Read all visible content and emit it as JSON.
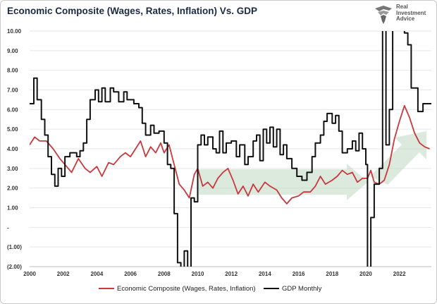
{
  "chart_data": {
    "type": "line",
    "title": "Economic Composite (Wages, Rates, Inflation) Vs. GDP",
    "xlabel": "",
    "ylabel": "",
    "xlim": [
      2000,
      2023.9
    ],
    "ylim": [
      -2,
      10
    ],
    "x_ticks": [
      "2000",
      "2002",
      "2004",
      "2006",
      "2008",
      "2010",
      "2012",
      "2014",
      "2016",
      "2018",
      "2020",
      "2022"
    ],
    "y_ticks": [
      "10.00",
      "9.00",
      "8.00",
      "7.00",
      "6.00",
      "5.00",
      "4.00",
      "3.00",
      "2.00",
      "1.00",
      "-",
      "(1.00)",
      "(2.00)"
    ],
    "grid": true,
    "legend": "bottom",
    "series": [
      {
        "name": "Economic Composite (Wages, Rates, Inflation)",
        "color": "#c8383c",
        "points": [
          [
            2000.0,
            4.2
          ],
          [
            2000.3,
            4.6
          ],
          [
            2000.6,
            4.4
          ],
          [
            2001.0,
            4.4
          ],
          [
            2001.4,
            4.0
          ],
          [
            2001.8,
            3.5
          ],
          [
            2002.2,
            3.1
          ],
          [
            2002.5,
            2.8
          ],
          [
            2002.9,
            3.5
          ],
          [
            2003.3,
            3.0
          ],
          [
            2003.6,
            2.8
          ],
          [
            2004.0,
            3.1
          ],
          [
            2004.3,
            2.6
          ],
          [
            2004.7,
            3.3
          ],
          [
            2005.0,
            3.2
          ],
          [
            2005.4,
            3.6
          ],
          [
            2005.7,
            3.8
          ],
          [
            2006.0,
            3.6
          ],
          [
            2006.3,
            4.0
          ],
          [
            2006.6,
            4.4
          ],
          [
            2006.9,
            3.6
          ],
          [
            2007.2,
            4.1
          ],
          [
            2007.5,
            3.8
          ],
          [
            2007.8,
            4.3
          ],
          [
            2008.0,
            3.8
          ],
          [
            2008.3,
            4.2
          ],
          [
            2008.6,
            3.2
          ],
          [
            2008.9,
            2.2
          ],
          [
            2009.2,
            1.9
          ],
          [
            2009.5,
            1.5
          ],
          [
            2009.8,
            2.7
          ],
          [
            2010.0,
            3.0
          ],
          [
            2010.3,
            2.1
          ],
          [
            2010.6,
            2.3
          ],
          [
            2010.9,
            2.0
          ],
          [
            2011.2,
            2.5
          ],
          [
            2011.5,
            2.8
          ],
          [
            2011.8,
            3.0
          ],
          [
            2012.1,
            2.4
          ],
          [
            2012.4,
            1.7
          ],
          [
            2012.7,
            2.1
          ],
          [
            2013.0,
            1.6
          ],
          [
            2013.3,
            2.2
          ],
          [
            2013.6,
            1.8
          ],
          [
            2014.0,
            2.3
          ],
          [
            2014.3,
            2.1
          ],
          [
            2014.7,
            1.9
          ],
          [
            2015.0,
            1.5
          ],
          [
            2015.3,
            1.2
          ],
          [
            2015.6,
            1.5
          ],
          [
            2016.0,
            1.6
          ],
          [
            2016.3,
            1.8
          ],
          [
            2016.7,
            1.8
          ],
          [
            2017.0,
            2.1
          ],
          [
            2017.3,
            2.6
          ],
          [
            2017.6,
            2.2
          ],
          [
            2018.0,
            2.4
          ],
          [
            2018.3,
            2.6
          ],
          [
            2018.6,
            2.9
          ],
          [
            2018.9,
            2.7
          ],
          [
            2019.2,
            2.8
          ],
          [
            2019.5,
            2.3
          ],
          [
            2019.8,
            2.5
          ],
          [
            2020.1,
            2.5
          ],
          [
            2020.3,
            2.9
          ],
          [
            2020.5,
            2.3
          ],
          [
            2020.8,
            2.2
          ],
          [
            2021.1,
            2.4
          ],
          [
            2021.4,
            3.2
          ],
          [
            2021.7,
            4.5
          ],
          [
            2022.0,
            5.4
          ],
          [
            2022.3,
            6.2
          ],
          [
            2022.6,
            5.6
          ],
          [
            2022.9,
            4.8
          ],
          [
            2023.2,
            4.3
          ],
          [
            2023.5,
            4.1
          ],
          [
            2023.8,
            4.0
          ]
        ]
      },
      {
        "name": "GDP Monthly",
        "color": "#111111",
        "points": [
          [
            2000.0,
            6.3
          ],
          [
            2000.25,
            6.3
          ],
          [
            2000.25,
            7.6
          ],
          [
            2000.45,
            7.6
          ],
          [
            2000.45,
            6.5
          ],
          [
            2000.7,
            6.5
          ],
          [
            2000.7,
            5.5
          ],
          [
            2000.9,
            5.5
          ],
          [
            2000.9,
            4.7
          ],
          [
            2001.1,
            4.7
          ],
          [
            2001.1,
            3.6
          ],
          [
            2001.3,
            3.6
          ],
          [
            2001.3,
            2.7
          ],
          [
            2001.5,
            2.7
          ],
          [
            2001.5,
            2.1
          ],
          [
            2001.7,
            2.1
          ],
          [
            2001.7,
            3.0
          ],
          [
            2001.9,
            3.0
          ],
          [
            2001.9,
            2.6
          ],
          [
            2002.1,
            2.6
          ],
          [
            2002.1,
            3.6
          ],
          [
            2002.4,
            3.6
          ],
          [
            2002.4,
            3.8
          ],
          [
            2002.8,
            3.8
          ],
          [
            2002.8,
            3.6
          ],
          [
            2003.0,
            3.6
          ],
          [
            2003.0,
            3.9
          ],
          [
            2003.2,
            3.9
          ],
          [
            2003.2,
            4.3
          ],
          [
            2003.4,
            4.3
          ],
          [
            2003.4,
            5.5
          ],
          [
            2003.6,
            5.5
          ],
          [
            2003.6,
            6.5
          ],
          [
            2003.9,
            6.5
          ],
          [
            2003.9,
            7.0
          ],
          [
            2004.1,
            7.0
          ],
          [
            2004.1,
            6.4
          ],
          [
            2004.3,
            6.4
          ],
          [
            2004.3,
            7.1
          ],
          [
            2004.5,
            7.1
          ],
          [
            2004.5,
            6.4
          ],
          [
            2004.8,
            6.4
          ],
          [
            2004.8,
            7.1
          ],
          [
            2005.0,
            7.1
          ],
          [
            2005.0,
            6.9
          ],
          [
            2005.3,
            6.9
          ],
          [
            2005.3,
            6.4
          ],
          [
            2005.6,
            6.4
          ],
          [
            2005.6,
            6.9
          ],
          [
            2005.8,
            6.9
          ],
          [
            2005.8,
            6.5
          ],
          [
            2006.2,
            6.5
          ],
          [
            2006.2,
            6.3
          ],
          [
            2006.5,
            6.3
          ],
          [
            2006.5,
            6.1
          ],
          [
            2006.7,
            6.1
          ],
          [
            2006.7,
            5.3
          ],
          [
            2006.9,
            5.3
          ],
          [
            2006.9,
            4.7
          ],
          [
            2007.2,
            4.7
          ],
          [
            2007.2,
            5.2
          ],
          [
            2007.4,
            5.2
          ],
          [
            2007.4,
            4.8
          ],
          [
            2007.7,
            4.8
          ],
          [
            2007.7,
            4.9
          ],
          [
            2008.0,
            4.9
          ],
          [
            2008.0,
            4.3
          ],
          [
            2008.2,
            4.3
          ],
          [
            2008.2,
            3.2
          ],
          [
            2008.4,
            3.2
          ],
          [
            2008.4,
            3.0
          ],
          [
            2008.6,
            3.0
          ],
          [
            2008.6,
            0.7
          ],
          [
            2008.8,
            0.7
          ],
          [
            2008.8,
            -1.8
          ],
          [
            2009.0,
            -1.8
          ],
          [
            2009.0,
            -2.5
          ],
          [
            2009.2,
            -2.5
          ],
          [
            2009.2,
            -1.2
          ],
          [
            2009.4,
            -1.2
          ],
          [
            2009.4,
            -2.5
          ],
          [
            2009.6,
            -2.5
          ],
          [
            2009.6,
            1.5
          ],
          [
            2009.8,
            1.5
          ],
          [
            2009.8,
            1.3
          ],
          [
            2010.0,
            1.3
          ],
          [
            2010.0,
            4.2
          ],
          [
            2010.2,
            4.2
          ],
          [
            2010.2,
            4.7
          ],
          [
            2010.4,
            4.7
          ],
          [
            2010.4,
            4.2
          ],
          [
            2010.6,
            4.2
          ],
          [
            2010.6,
            4.6
          ],
          [
            2010.9,
            4.6
          ],
          [
            2010.9,
            4.0
          ],
          [
            2011.1,
            4.0
          ],
          [
            2011.1,
            3.8
          ],
          [
            2011.3,
            3.8
          ],
          [
            2011.3,
            4.9
          ],
          [
            2011.5,
            4.9
          ],
          [
            2011.5,
            3.8
          ],
          [
            2011.7,
            3.8
          ],
          [
            2011.7,
            4.3
          ],
          [
            2012.0,
            4.3
          ],
          [
            2012.0,
            4.4
          ],
          [
            2012.3,
            4.4
          ],
          [
            2012.3,
            3.6
          ],
          [
            2012.5,
            3.6
          ],
          [
            2012.5,
            4.2
          ],
          [
            2012.8,
            4.2
          ],
          [
            2012.8,
            3.2
          ],
          [
            2013.0,
            3.2
          ],
          [
            2013.0,
            3.6
          ],
          [
            2013.3,
            3.6
          ],
          [
            2013.3,
            4.4
          ],
          [
            2013.5,
            4.4
          ],
          [
            2013.5,
            4.7
          ],
          [
            2013.7,
            4.7
          ],
          [
            2013.7,
            3.4
          ],
          [
            2013.9,
            3.4
          ],
          [
            2013.9,
            5.0
          ],
          [
            2014.1,
            5.0
          ],
          [
            2014.1,
            4.3
          ],
          [
            2014.3,
            4.3
          ],
          [
            2014.3,
            5.1
          ],
          [
            2014.5,
            5.1
          ],
          [
            2014.5,
            4.1
          ],
          [
            2014.7,
            4.1
          ],
          [
            2014.7,
            5.0
          ],
          [
            2014.9,
            5.0
          ],
          [
            2014.9,
            3.7
          ],
          [
            2015.1,
            3.7
          ],
          [
            2015.1,
            4.2
          ],
          [
            2015.3,
            4.2
          ],
          [
            2015.3,
            3.5
          ],
          [
            2015.6,
            3.5
          ],
          [
            2015.6,
            3.0
          ],
          [
            2015.9,
            3.0
          ],
          [
            2015.9,
            2.6
          ],
          [
            2016.2,
            2.6
          ],
          [
            2016.2,
            2.4
          ],
          [
            2016.5,
            2.4
          ],
          [
            2016.5,
            2.8
          ],
          [
            2016.8,
            2.8
          ],
          [
            2016.8,
            3.6
          ],
          [
            2017.0,
            3.6
          ],
          [
            2017.0,
            4.3
          ],
          [
            2017.3,
            4.3
          ],
          [
            2017.3,
            4.7
          ],
          [
            2017.5,
            4.7
          ],
          [
            2017.5,
            5.4
          ],
          [
            2017.7,
            5.4
          ],
          [
            2017.7,
            5.8
          ],
          [
            2018.0,
            5.8
          ],
          [
            2018.0,
            5.3
          ],
          [
            2018.2,
            5.3
          ],
          [
            2018.2,
            5.7
          ],
          [
            2018.4,
            5.7
          ],
          [
            2018.4,
            4.9
          ],
          [
            2018.6,
            4.9
          ],
          [
            2018.6,
            3.8
          ],
          [
            2018.9,
            3.8
          ],
          [
            2018.9,
            4.0
          ],
          [
            2019.2,
            4.0
          ],
          [
            2019.2,
            4.4
          ],
          [
            2019.4,
            4.4
          ],
          [
            2019.4,
            3.9
          ],
          [
            2019.6,
            3.9
          ],
          [
            2019.6,
            4.8
          ],
          [
            2019.8,
            4.8
          ],
          [
            2019.8,
            4.0
          ],
          [
            2020.0,
            4.0
          ],
          [
            2020.0,
            3.2
          ],
          [
            2020.1,
            3.2
          ],
          [
            2020.1,
            -2.5
          ],
          [
            2020.3,
            -2.5
          ],
          [
            2020.3,
            0.5
          ],
          [
            2020.5,
            0.5
          ],
          [
            2020.5,
            2.2
          ],
          [
            2020.8,
            2.2
          ],
          [
            2020.8,
            3.0
          ],
          [
            2021.0,
            3.0
          ],
          [
            2021.0,
            10.5
          ],
          [
            2021.2,
            10.5
          ],
          [
            2021.2,
            4.2
          ],
          [
            2021.4,
            4.2
          ],
          [
            2021.4,
            6.0
          ],
          [
            2021.6,
            6.0
          ],
          [
            2021.6,
            10.5
          ],
          [
            2022.3,
            10.5
          ],
          [
            2022.3,
            9.9
          ],
          [
            2022.5,
            9.9
          ],
          [
            2022.5,
            9.3
          ],
          [
            2022.7,
            9.3
          ],
          [
            2022.7,
            7.1
          ],
          [
            2023.1,
            7.1
          ],
          [
            2023.1,
            5.9
          ],
          [
            2023.4,
            5.9
          ],
          [
            2023.4,
            6.3
          ],
          [
            2023.9,
            6.3
          ]
        ]
      }
    ]
  },
  "logo": {
    "line1": "Real",
    "line2": "Investment",
    "line3": "Advice"
  },
  "legend": {
    "item1": "Economic Composite (Wages, Rates, Inflation)",
    "item2": "GDP Monthly"
  }
}
